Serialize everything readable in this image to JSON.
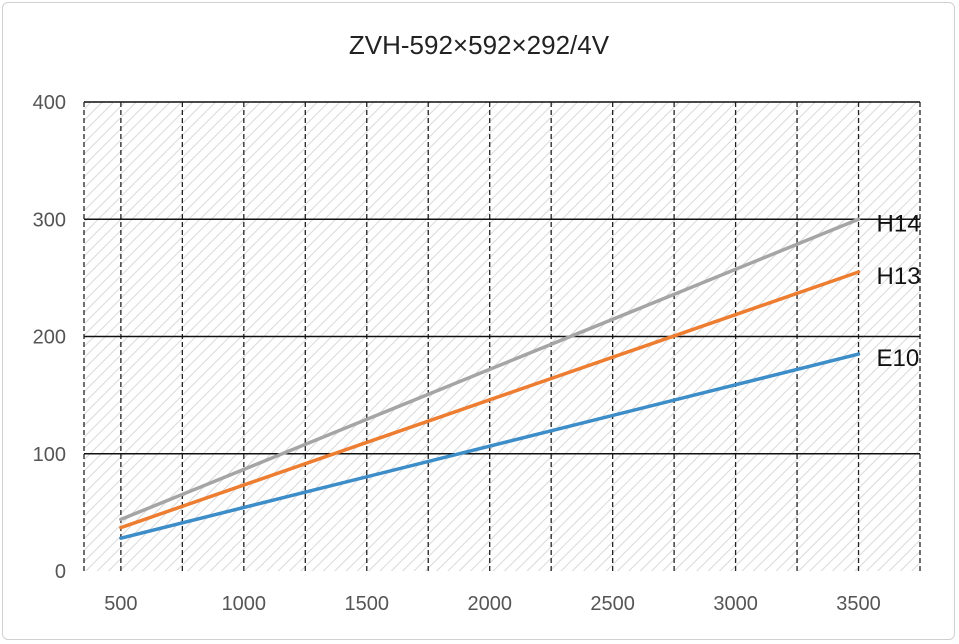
{
  "chart_data": {
    "type": "line",
    "title": "ZVH-592×592×292/4V",
    "xlabel": "",
    "ylabel": "",
    "xlim": [
      350,
      3750
    ],
    "ylim": [
      0,
      400
    ],
    "x_ticks": [
      500,
      1000,
      1500,
      2000,
      2500,
      3000,
      3500
    ],
    "y_ticks": [
      0,
      100,
      200,
      300,
      400
    ],
    "x_tick_labels": [
      "500",
      "1000",
      "1500",
      "2000",
      "2500",
      "3000",
      "3500"
    ],
    "y_tick_labels": [
      "0",
      "100",
      "200",
      "300",
      "400"
    ],
    "x_minor_grid_step": 250,
    "grid": true,
    "legend": "labels at line ends (right)",
    "x": [
      500,
      3500
    ],
    "series": [
      {
        "name": "H14",
        "values": [
          44,
          300
        ],
        "color": "#a5a5a5"
      },
      {
        "name": "H13",
        "values": [
          37,
          255
        ],
        "color": "#ed7d31"
      },
      {
        "name": "E10",
        "values": [
          28,
          185
        ],
        "color": "#3c8dc8"
      }
    ]
  }
}
